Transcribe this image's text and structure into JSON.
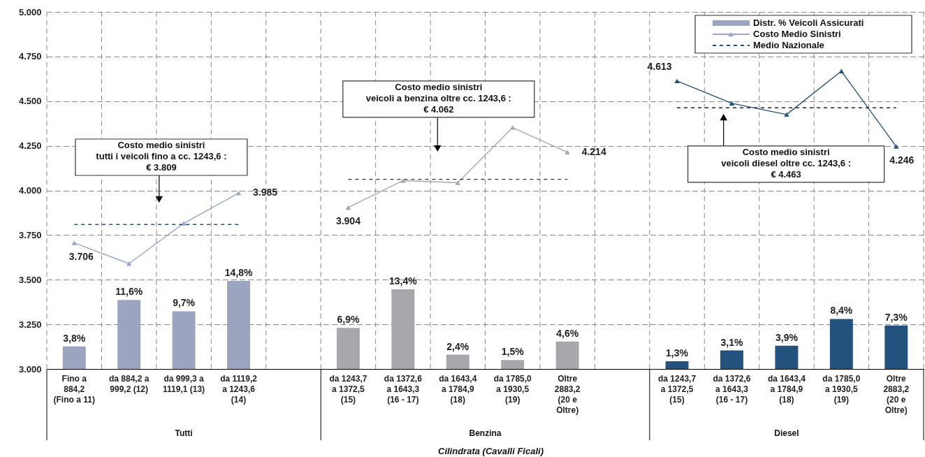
{
  "chart_data": {
    "type": "bar",
    "xlabel": "Cilindrata (Cavalli Ficali)",
    "categories": [
      "Fino a\n884,2\n(Fino a 11)",
      "da 884,2 a\n999,2 (12)",
      "da 999,3 a\n1119,1 (13)",
      "da 1119,2\na 1243,6\n(14)",
      null,
      "da 1243,7\na 1372,5\n(15)",
      "da 1372,6\na 1643,3\n(16 - 17)",
      "da 1643,4\na 1784,9\n(18)",
      "da 1785,0\na 1930,5\n(19)",
      "Oltre\n2883,2\n(20 e\nOltre)",
      null,
      "da 1243,7\na 1372,5\n(15)",
      "da 1372,6\na 1643,3\n(16 - 17)",
      "da 1643,4\na 1784,9\n(18)",
      "da 1785,0\na 1930,5\n(19)",
      "Oltre\n2883,2\n(20 e\nOltre)"
    ],
    "series": [
      {
        "name": "Distr. % Veicoli Assicurati",
        "axis": "y2",
        "colors": [
          "#9ba5c0",
          "#9ba5c0",
          "#9ba5c0",
          "#9ba5c0",
          null,
          "#a6a8ab",
          "#a6a8ab",
          "#a6a8ab",
          "#a6a8ab",
          "#a6a8ab",
          null,
          "#23527f",
          "#23527f",
          "#23527f",
          "#23527f",
          "#23527f"
        ],
        "values": [
          3.8,
          11.6,
          9.7,
          14.8,
          null,
          6.9,
          13.4,
          2.4,
          1.5,
          4.6,
          null,
          1.3,
          3.1,
          3.9,
          8.4,
          7.3
        ],
        "value_labels": [
          "3,8%",
          "11,6%",
          "9,7%",
          "14,8%",
          null,
          "6,9%",
          "13,4%",
          "2,4%",
          "1,5%",
          "4,6%",
          null,
          "1,3%",
          "3,1%",
          "3,9%",
          "8,4%",
          "7,3%"
        ]
      },
      {
        "name": "Costo Medio Sinistri",
        "type": "line",
        "color": "#9ba5c8",
        "marker": "triangle",
        "values": [
          3706,
          3590,
          3816,
          3985,
          null,
          null,
          null,
          null,
          null,
          null,
          null,
          null,
          null,
          null,
          null,
          null
        ],
        "value_labels": [
          "3.706",
          null,
          null,
          "3.985",
          null,
          null,
          null,
          null,
          null,
          null,
          null,
          null,
          null,
          null,
          null,
          null
        ]
      },
      {
        "type": "line",
        "color": "#a8a8a8",
        "marker": "triangle",
        "values": [
          null,
          null,
          null,
          null,
          null,
          3904,
          4055,
          4043,
          4352,
          4214,
          null,
          null,
          null,
          null,
          null,
          null
        ],
        "value_labels": [
          null,
          null,
          null,
          null,
          null,
          "3.904",
          null,
          null,
          null,
          "4.214",
          null,
          null,
          null,
          null,
          null,
          null
        ]
      },
      {
        "type": "line",
        "color": "#23527f",
        "marker": "triangle",
        "values": [
          null,
          null,
          null,
          null,
          null,
          null,
          null,
          null,
          null,
          null,
          null,
          4613,
          4488,
          4425,
          4668,
          4246
        ],
        "value_labels": [
          null,
          null,
          null,
          null,
          null,
          null,
          null,
          null,
          null,
          null,
          null,
          "4.613",
          null,
          null,
          null,
          "4.246"
        ]
      },
      {
        "name": "Medio Nazionale",
        "type": "line",
        "color": "#1f4e79",
        "marker": "none",
        "line_style": "dashed",
        "values": [
          3809,
          3809,
          3809,
          3809,
          null,
          null,
          null,
          null,
          null,
          null,
          null,
          null,
          null,
          null,
          null,
          null
        ]
      },
      {
        "type": "line",
        "color": "#333333",
        "marker": "none",
        "line_style": "dashed",
        "values": [
          null,
          null,
          null,
          null,
          null,
          4062,
          4062,
          4062,
          4062,
          4062,
          null,
          null,
          null,
          null,
          null,
          null
        ]
      },
      {
        "type": "line",
        "color": "#222222",
        "marker": "none",
        "line_style": "dashed",
        "values": [
          null,
          null,
          null,
          null,
          null,
          null,
          null,
          null,
          null,
          null,
          null,
          4463,
          4463,
          4463,
          4463,
          4463
        ]
      }
    ],
    "ylim": [
      3000,
      5000
    ],
    "yticks": [
      {
        "value": 3000,
        "label": "3.000"
      },
      {
        "value": 3250,
        "label": "3.250"
      },
      {
        "value": 3500,
        "label": "3.500"
      },
      {
        "value": 3750,
        "label": "3.750"
      },
      {
        "value": 4000,
        "label": "4.000"
      },
      {
        "value": 4250,
        "label": "4.250"
      },
      {
        "value": 4500,
        "label": "4.500"
      },
      {
        "value": 4750,
        "label": "4.750"
      },
      {
        "value": 5000,
        "label": "5.000"
      }
    ],
    "y2lim": [
      0,
      60
    ],
    "grid": true,
    "legend": "top right",
    "annotations": [
      "Costo medio sinistri\ntutti i veicoli fino a cc. 1243,6 :\n€ 3.809",
      "Costo medio sinistri\nveicoli a benzina oltre cc. 1243,6 :\n€ 4.062",
      "Costo medio sinistri\nveicoli diesel oltre cc. 1243,6 :\n€ 4.463",
      "Tutti",
      "Benzina",
      "Diesel"
    ]
  }
}
